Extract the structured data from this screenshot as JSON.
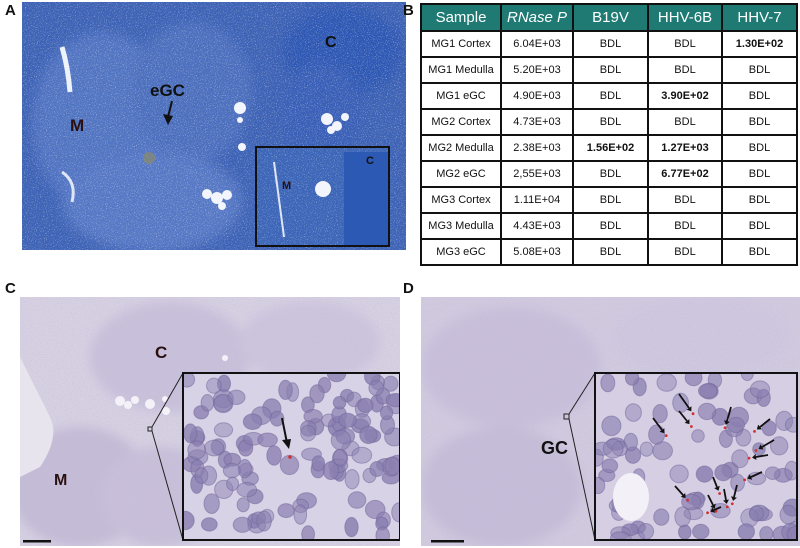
{
  "panel_letters": {
    "a": "A",
    "b": "B",
    "c": "C",
    "d": "D"
  },
  "panel_a": {
    "label_cortex": "C",
    "label_medulla": "M",
    "label_egc": "eGC",
    "inset_cortex": "C",
    "inset_medulla": "M"
  },
  "panel_c": {
    "label_cortex": "C",
    "label_medulla": "M"
  },
  "panel_d": {
    "label_gc": "GC"
  },
  "table": {
    "headers": [
      "Sample",
      "RNase P",
      "B19V",
      "HHV-6B",
      "HHV-7"
    ],
    "rows": [
      {
        "sample": "MG1 Cortex",
        "rnase": "6.04E+03",
        "b19v": "BDL",
        "hhv6b": "BDL",
        "hhv7": "1.30E+02",
        "bold": [
          "hhv7"
        ]
      },
      {
        "sample": "MG1 Medulla",
        "rnase": "5.20E+03",
        "b19v": "BDL",
        "hhv6b": "BDL",
        "hhv7": "BDL",
        "bold": []
      },
      {
        "sample": "MG1 eGC",
        "rnase": "4.90E+03",
        "b19v": "BDL",
        "hhv6b": "3.90E+02",
        "hhv7": "BDL",
        "bold": [
          "hhv6b"
        ]
      },
      {
        "sample": "MG2 Cortex",
        "rnase": "4.73E+03",
        "b19v": "BDL",
        "hhv6b": "BDL",
        "hhv7": "BDL",
        "bold": []
      },
      {
        "sample": "MG2 Medulla",
        "rnase": "2.38E+03",
        "b19v": "1.56E+02",
        "hhv6b": "1.27E+03",
        "hhv7": "BDL",
        "bold": [
          "b19v",
          "hhv6b"
        ]
      },
      {
        "sample": "MG2 eGC",
        "rnase": "2,55E+03",
        "b19v": "BDL",
        "hhv6b": "6.77E+02",
        "hhv7": "BDL",
        "bold": [
          "hhv6b"
        ]
      },
      {
        "sample": "MG3 Cortex",
        "rnase": "1.11E+04",
        "b19v": "BDL",
        "hhv6b": "BDL",
        "hhv7": "BDL",
        "bold": []
      },
      {
        "sample": "MG3 Medulla",
        "rnase": "4.43E+03",
        "b19v": "BDL",
        "hhv6b": "BDL",
        "hhv7": "BDL",
        "bold": []
      },
      {
        "sample": "MG3 eGC",
        "rnase": "5.08E+03",
        "b19v": "BDL",
        "hhv6b": "BDL",
        "hhv7": "BDL",
        "bold": []
      }
    ]
  },
  "colors": {
    "header_teal": "#1f7a74",
    "stain_blue": "#3f63b5",
    "tissue_lilac": "#cfc6dc",
    "nucleus_violet": "#8a7fb0",
    "signal_red": "#d23030"
  }
}
